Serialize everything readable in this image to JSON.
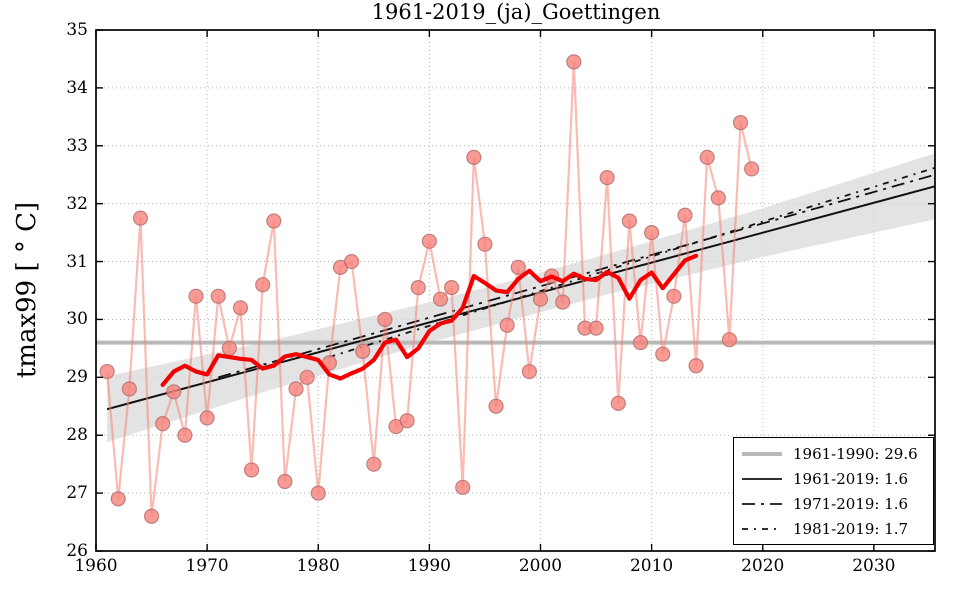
{
  "title": "1961-2019_(ja)_Goettingen",
  "ylabel": "tmax99 [ ° C]",
  "colors": {
    "annual_line": "#f88379",
    "marker_fill": "#f6827a",
    "marker_edge": "#b97272",
    "smoothed": "#f40000",
    "trend": "#111111",
    "reference": "#b9b9b9",
    "band": "#d9d9d9",
    "grid": "#b5b5b5",
    "spine": "#000000"
  },
  "legend": {
    "items": [
      {
        "label": "1961-1990: 29.6",
        "style": "reference"
      },
      {
        "label": "1961-2019: 1.6",
        "style": "solid"
      },
      {
        "label": "1971-2019: 1.6",
        "style": "dashdot-long"
      },
      {
        "label": "1981-2019: 1.7",
        "style": "dashdot-short"
      }
    ]
  },
  "chart_data": {
    "type": "line",
    "title": "1961-2019_(ja)_Goettingen",
    "xlabel": "",
    "ylabel": "tmax99 [ ° C]",
    "xlim": [
      1960,
      2035.5
    ],
    "ylim": [
      26,
      35
    ],
    "grid": true,
    "legend_position": "lower right",
    "xtick_values": [
      1960,
      1970,
      1980,
      1990,
      2000,
      2010,
      2020,
      2030
    ],
    "xtick_labels": [
      "1960",
      "1970",
      "1980",
      "1990",
      "2000",
      "2010",
      "2020",
      "2030"
    ],
    "ytick_values": [
      26,
      27,
      28,
      29,
      30,
      31,
      32,
      33,
      34,
      35
    ],
    "ytick_labels": [
      "26",
      "27",
      "28",
      "29",
      "30",
      "31",
      "32",
      "33",
      "34",
      "35"
    ],
    "reference_line": {
      "label": "1961-1990: 29.6",
      "value": 29.6,
      "x": [
        1960,
        2035.5
      ]
    },
    "annual": {
      "name": "annual tmax99",
      "years": [
        1961,
        1962,
        1963,
        1964,
        1965,
        1966,
        1967,
        1968,
        1969,
        1970,
        1971,
        1972,
        1973,
        1974,
        1975,
        1976,
        1977,
        1978,
        1979,
        1980,
        1981,
        1982,
        1983,
        1984,
        1985,
        1986,
        1987,
        1988,
        1989,
        1990,
        1991,
        1992,
        1993,
        1994,
        1995,
        1996,
        1997,
        1998,
        1999,
        2000,
        2001,
        2002,
        2003,
        2004,
        2005,
        2006,
        2007,
        2008,
        2009,
        2010,
        2011,
        2012,
        2013,
        2014,
        2015,
        2016,
        2017,
        2018,
        2019
      ],
      "values": [
        29.1,
        26.9,
        28.8,
        31.75,
        26.6,
        28.2,
        28.75,
        28.0,
        30.4,
        28.3,
        30.4,
        29.5,
        30.2,
        27.4,
        30.6,
        31.7,
        27.2,
        28.8,
        29.0,
        27.0,
        29.25,
        30.9,
        31.0,
        29.45,
        27.5,
        30.0,
        28.15,
        28.25,
        30.55,
        31.35,
        30.35,
        30.55,
        27.1,
        32.8,
        31.3,
        28.5,
        29.9,
        30.9,
        29.1,
        30.35,
        30.75,
        30.3,
        34.45,
        29.85,
        29.85,
        32.45,
        28.55,
        31.7,
        29.6,
        31.5,
        29.4,
        30.4,
        31.8,
        29.2,
        32.8,
        32.1,
        29.65,
        33.4,
        32.6
      ]
    },
    "smoothed": {
      "name": "smoothed tmax99",
      "years": [
        1966,
        1967,
        1968,
        1969,
        1970,
        1971,
        1972,
        1973,
        1974,
        1975,
        1976,
        1977,
        1978,
        1979,
        1980,
        1981,
        1982,
        1983,
        1984,
        1985,
        1986,
        1987,
        1988,
        1989,
        1990,
        1991,
        1992,
        1993,
        1994,
        1995,
        1996,
        1997,
        1998,
        1999,
        2000,
        2001,
        2002,
        2003,
        2004,
        2005,
        2006,
        2007,
        2008,
        2009,
        2010,
        2011,
        2012,
        2013,
        2014
      ],
      "values": [
        28.87,
        29.1,
        29.2,
        29.1,
        29.05,
        29.38,
        29.35,
        29.32,
        29.3,
        29.15,
        29.2,
        29.36,
        29.4,
        29.35,
        29.3,
        29.05,
        28.98,
        29.07,
        29.15,
        29.3,
        29.6,
        29.65,
        29.35,
        29.5,
        29.8,
        29.93,
        29.98,
        30.2,
        30.75,
        30.63,
        30.5,
        30.47,
        30.7,
        30.84,
        30.66,
        30.74,
        30.66,
        30.79,
        30.7,
        30.68,
        30.82,
        30.72,
        30.36,
        30.68,
        30.81,
        30.54,
        30.78,
        31.02,
        31.1
      ]
    },
    "trends": [
      {
        "label": "1961-2019: 1.6",
        "style": "solid",
        "x": [
          1961,
          2035.5
        ],
        "y": [
          28.45,
          32.3
        ],
        "band": {
          "x": [
            1961,
            1975,
            1990,
            1998,
            2006,
            2020,
            2035.5
          ],
          "top": [
            29.02,
            29.6,
            30.3,
            30.7,
            31.13,
            31.92,
            32.87
          ],
          "bottom": [
            27.88,
            28.74,
            29.6,
            30.02,
            30.43,
            31.08,
            31.73
          ]
        }
      },
      {
        "label": "1971-2019: 1.6",
        "style": "dashdot-long",
        "x": [
          1971,
          2035.5
        ],
        "y": [
          29.0,
          32.5
        ]
      },
      {
        "label": "1981-2019: 1.7",
        "style": "dashdot-short",
        "x": [
          1981,
          2035.5
        ],
        "y": [
          29.35,
          32.62
        ]
      }
    ]
  }
}
